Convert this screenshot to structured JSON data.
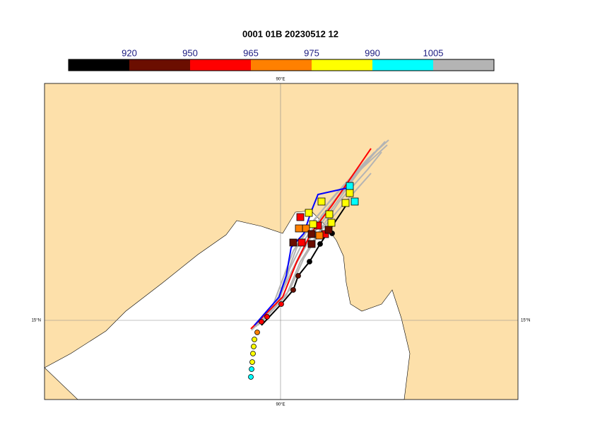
{
  "title": "0001 01B 20230512 12",
  "colorbar": {
    "labels": [
      920,
      950,
      965,
      975,
      990,
      1005
    ],
    "colors": [
      "#000000",
      "#6b0e00",
      "#ff0000",
      "#ff8000",
      "#ffff00",
      "#00ffff",
      "#b4b4b4"
    ]
  },
  "map": {
    "lon_label": "90°E",
    "lat_label": "15°N"
  }
}
